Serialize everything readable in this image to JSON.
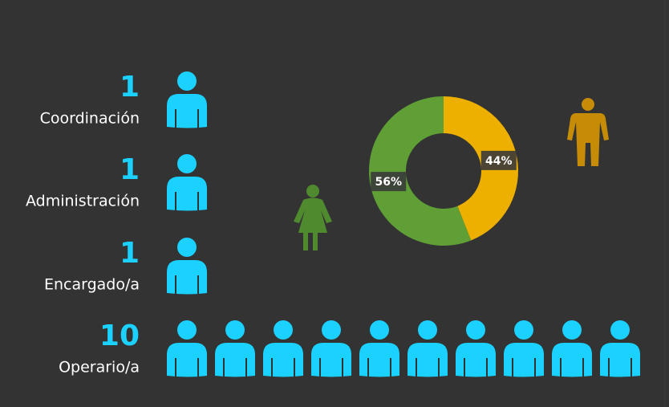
{
  "chart_data": [
    {
      "type": "pictograph",
      "categories": [
        "Coordinación",
        "Administración",
        "Encargado/a",
        "Operario/a"
      ],
      "values": [
        1,
        1,
        1,
        10
      ],
      "color": "#1ad1ff"
    },
    {
      "type": "donut",
      "values": [
        44,
        56
      ],
      "value_labels": [
        "44%",
        "56%"
      ],
      "colors": [
        "#eeb000",
        "#5f9f35"
      ]
    }
  ]
}
